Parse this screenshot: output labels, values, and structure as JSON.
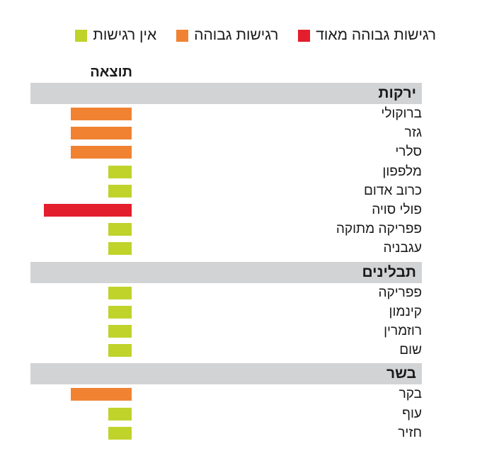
{
  "legend": [
    {
      "label": "רגישות גבוהה מאוד",
      "color": "#e31e2d"
    },
    {
      "label": "רגישות גבוהה",
      "color": "#f08232"
    },
    {
      "label": "אין רגישות",
      "color": "#bfd32b"
    }
  ],
  "result_header": "תוצאה",
  "chart_data": {
    "type": "bar",
    "orientation": "horizontal",
    "value_scale": {
      "none": 1,
      "high": 2,
      "very_high": 3
    },
    "groups": [
      {
        "name": "ירקות",
        "items": [
          {
            "label": "ברוקולי",
            "level": "high",
            "value": 2
          },
          {
            "label": "גזר",
            "level": "high",
            "value": 2
          },
          {
            "label": "סלרי",
            "level": "high",
            "value": 2
          },
          {
            "label": "מלפפון",
            "level": "none",
            "value": 1
          },
          {
            "label": "כרוב אדום",
            "level": "none",
            "value": 1
          },
          {
            "label": "פולי סויה",
            "level": "very_high",
            "value": 3
          },
          {
            "label": "פפריקה מתוקה",
            "level": "none",
            "value": 1
          },
          {
            "label": "עגבניה",
            "level": "none",
            "value": 1
          }
        ]
      },
      {
        "name": "תבלינים",
        "items": [
          {
            "label": "פפריקה",
            "level": "none",
            "value": 1
          },
          {
            "label": "קינמון",
            "level": "none",
            "value": 1
          },
          {
            "label": "רוזמרין",
            "level": "none",
            "value": 1
          },
          {
            "label": "שום",
            "level": "none",
            "value": 1
          }
        ]
      },
      {
        "name": "בשר",
        "items": [
          {
            "label": "בקר",
            "level": "high",
            "value": 2
          },
          {
            "label": "עוף",
            "level": "none",
            "value": 1
          },
          {
            "label": "חזיר",
            "level": "none",
            "value": 1
          }
        ]
      }
    ]
  },
  "colors": {
    "none": "#bfd32b",
    "high": "#f08232",
    "very_high": "#e31e2d",
    "band": "#d2d3d5"
  }
}
